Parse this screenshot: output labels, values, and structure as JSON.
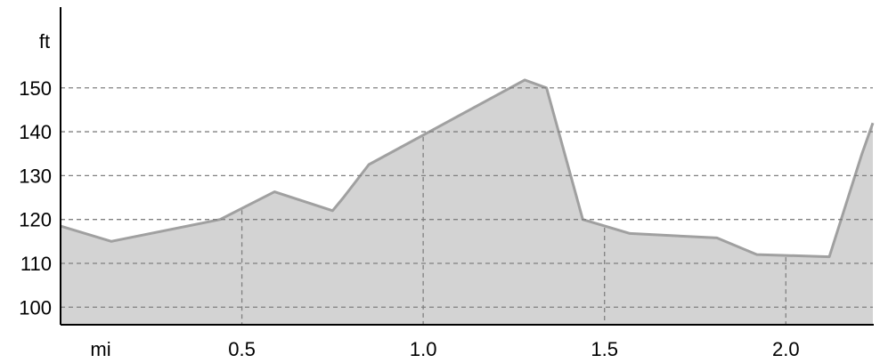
{
  "chart_data": {
    "type": "area",
    "xlabel": "mi",
    "ylabel": "ft",
    "xlim": [
      0,
      2.24
    ],
    "ylim": [
      96,
      168
    ],
    "x_ticks": [
      {
        "value": 0.5,
        "label": "0.5"
      },
      {
        "value": 1.0,
        "label": "1.0"
      },
      {
        "value": 1.5,
        "label": "1.5"
      },
      {
        "value": 2.0,
        "label": "2.0"
      }
    ],
    "y_ticks": [
      {
        "value": 100,
        "label": "100"
      },
      {
        "value": 110,
        "label": "110"
      },
      {
        "value": 120,
        "label": "120"
      },
      {
        "value": 130,
        "label": "130"
      },
      {
        "value": 140,
        "label": "140"
      },
      {
        "value": 150,
        "label": "150"
      }
    ],
    "grid": true,
    "colors": {
      "fill": "#d3d3d3",
      "line": "#a0a0a0",
      "grid": "#808080",
      "axis": "#000000"
    },
    "series": [
      {
        "x": [
          0.0,
          0.14,
          0.44,
          0.59,
          0.75,
          0.78,
          0.85,
          1.28,
          1.34,
          1.44,
          1.57,
          1.81,
          1.92,
          2.12,
          2.21,
          2.24
        ],
        "y": [
          118.5,
          115,
          120,
          126.3,
          122,
          125,
          132.5,
          151.8,
          150,
          120,
          116.8,
          115.8,
          112,
          111.5,
          135,
          142
        ]
      }
    ]
  }
}
